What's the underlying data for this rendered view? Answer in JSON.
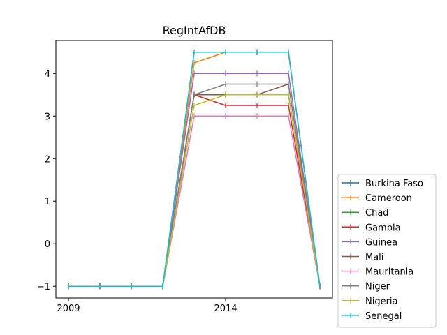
{
  "chart_data": {
    "type": "line",
    "title": "RegIntAfDB",
    "xlabel": "",
    "ylabel": "",
    "x": [
      2009,
      2010,
      2011,
      2012,
      2013,
      2014,
      2015,
      2016,
      2017
    ],
    "xlim": [
      2008.6,
      2017.4
    ],
    "ylim": [
      -1.275,
      4.775
    ],
    "xticks": [
      2009,
      2014
    ],
    "xtick_labels": [
      "2009",
      "2014"
    ],
    "yticks": [
      -1,
      0,
      1,
      2,
      3,
      4
    ],
    "ytick_labels": [
      "−1",
      "0",
      "1",
      "2",
      "3",
      "4"
    ],
    "grid": false,
    "legend_position": "lower right, outside plot",
    "series": [
      {
        "name": "Burkina Faso",
        "color": "#1f77b4",
        "values": [
          -1,
          -1,
          -1,
          -1,
          4.5,
          4.5,
          4.5,
          4.5,
          -1
        ]
      },
      {
        "name": "Cameroon",
        "color": "#ff7f0e",
        "values": [
          -1,
          -1,
          -1,
          -1,
          4.25,
          4.5,
          4.5,
          4.5,
          -1
        ]
      },
      {
        "name": "Chad",
        "color": "#2ca02c",
        "values": [
          -1,
          -1,
          -1,
          -1,
          3.5,
          3.5,
          3.5,
          3.5,
          -1
        ]
      },
      {
        "name": "Gambia",
        "color": "#d62728",
        "values": [
          -1,
          -1,
          -1,
          -1,
          3.5,
          3.25,
          3.25,
          3.25,
          -1
        ]
      },
      {
        "name": "Guinea",
        "color": "#9467bd",
        "values": [
          -1,
          -1,
          -1,
          -1,
          4.0,
          4.0,
          4.0,
          4.0,
          -1
        ]
      },
      {
        "name": "Mali",
        "color": "#8c564b",
        "values": [
          -1,
          -1,
          -1,
          -1,
          3.5,
          3.5,
          3.5,
          3.75,
          -1
        ]
      },
      {
        "name": "Mauritania",
        "color": "#e377c2",
        "values": [
          -1,
          -1,
          -1,
          -1,
          3.0,
          3.0,
          3.0,
          3.0,
          -1
        ]
      },
      {
        "name": "Niger",
        "color": "#7f7f7f",
        "values": [
          -1,
          -1,
          -1,
          -1,
          3.5,
          3.75,
          3.75,
          3.75,
          -1
        ]
      },
      {
        "name": "Nigeria",
        "color": "#bcbd22",
        "values": [
          -1,
          -1,
          -1,
          -1,
          3.25,
          3.5,
          3.5,
          3.5,
          -1
        ]
      },
      {
        "name": "Senegal",
        "color": "#17becf",
        "values": [
          -1,
          -1,
          -1,
          -1,
          4.5,
          4.5,
          4.5,
          4.5,
          -1
        ]
      }
    ]
  }
}
